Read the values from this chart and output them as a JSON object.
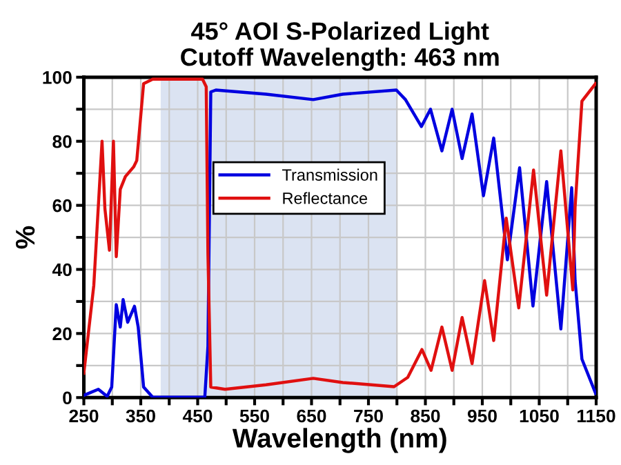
{
  "chart_data": {
    "type": "line",
    "title": "45° AOI S-Polarized Light\nCutoff Wavelength: 463 nm",
    "xlabel": "Wavelength (nm)",
    "ylabel": "%",
    "xlim": [
      250,
      1150
    ],
    "ylim": [
      0,
      100
    ],
    "xticks": [
      250,
      {
        "value": 300,
        "label": null
      },
      350,
      {
        "value": 400,
        "label": null
      },
      450,
      {
        "value": 500,
        "label": null
      },
      550,
      {
        "value": 600,
        "label": null
      },
      650,
      {
        "value": 700,
        "label": null
      },
      750,
      {
        "value": 800,
        "label": null
      },
      850,
      {
        "value": 900,
        "label": null
      },
      950,
      {
        "value": 1000,
        "label": null
      },
      1050,
      {
        "value": 1100,
        "label": null
      },
      1150
    ],
    "yticks": [
      0,
      {
        "value": 10,
        "label": null
      },
      20,
      {
        "value": 30,
        "label": null
      },
      40,
      {
        "value": 50,
        "label": null
      },
      60,
      {
        "value": 70,
        "label": null
      },
      80,
      {
        "value": 90,
        "label": null
      },
      100
    ],
    "grid": true,
    "legend": "top",
    "marker": "none",
    "line_style": "solid",
    "bands": [
      {
        "axis": "x",
        "from": 385,
        "to": 800,
        "color": "#dbe3f2"
      }
    ],
    "series": [
      {
        "name": "Transmission",
        "color": "#0000e0",
        "x": [
          250,
          275.5,
          291,
          299,
          307,
          314,
          319,
          327,
          339,
          345.5,
          355,
          371,
          462.5,
          468,
          473,
          482,
          570,
          653,
          705,
          799,
          815,
          843,
          859,
          879,
          897,
          914.5,
          932,
          952,
          970,
          994,
          1015.5,
          1039,
          1063,
          1088,
          1107,
          1113,
          1125,
          1149
        ],
        "values": [
          0.7,
          2.6,
          0.4,
          3.3,
          29,
          22,
          30.6,
          23.5,
          28.5,
          22,
          3.3,
          0.1,
          0.1,
          16,
          95.4,
          96,
          94.7,
          93,
          94.7,
          96,
          93,
          84.6,
          90,
          77,
          90,
          74.6,
          88.5,
          63,
          81,
          43,
          71.7,
          28.6,
          67.4,
          21.4,
          65.5,
          36.5,
          12,
          1.3
        ]
      },
      {
        "name": "Reflectance",
        "color": "#e01010",
        "x": [
          250,
          267.5,
          282,
          287,
          295,
          302,
          307,
          314,
          323,
          337.5,
          343,
          355,
          371,
          458.5,
          465,
          468,
          473,
          498,
          570,
          653,
          705,
          795,
          819,
          844,
          860,
          879,
          897,
          914.5,
          932,
          954,
          970,
          992,
          1014,
          1040,
          1063,
          1088,
          1109,
          1113,
          1125,
          1149
        ],
        "values": [
          7.6,
          35,
          80,
          59,
          46,
          80,
          44,
          65,
          69,
          72,
          74,
          98,
          99.4,
          99.4,
          97,
          45,
          3.3,
          2.6,
          4,
          6,
          4.7,
          3.4,
          6.3,
          15,
          8.5,
          22,
          8.5,
          25,
          10.6,
          36.5,
          17.8,
          56,
          28,
          71,
          32,
          77,
          33.6,
          59.5,
          92.5,
          98
        ]
      }
    ]
  }
}
